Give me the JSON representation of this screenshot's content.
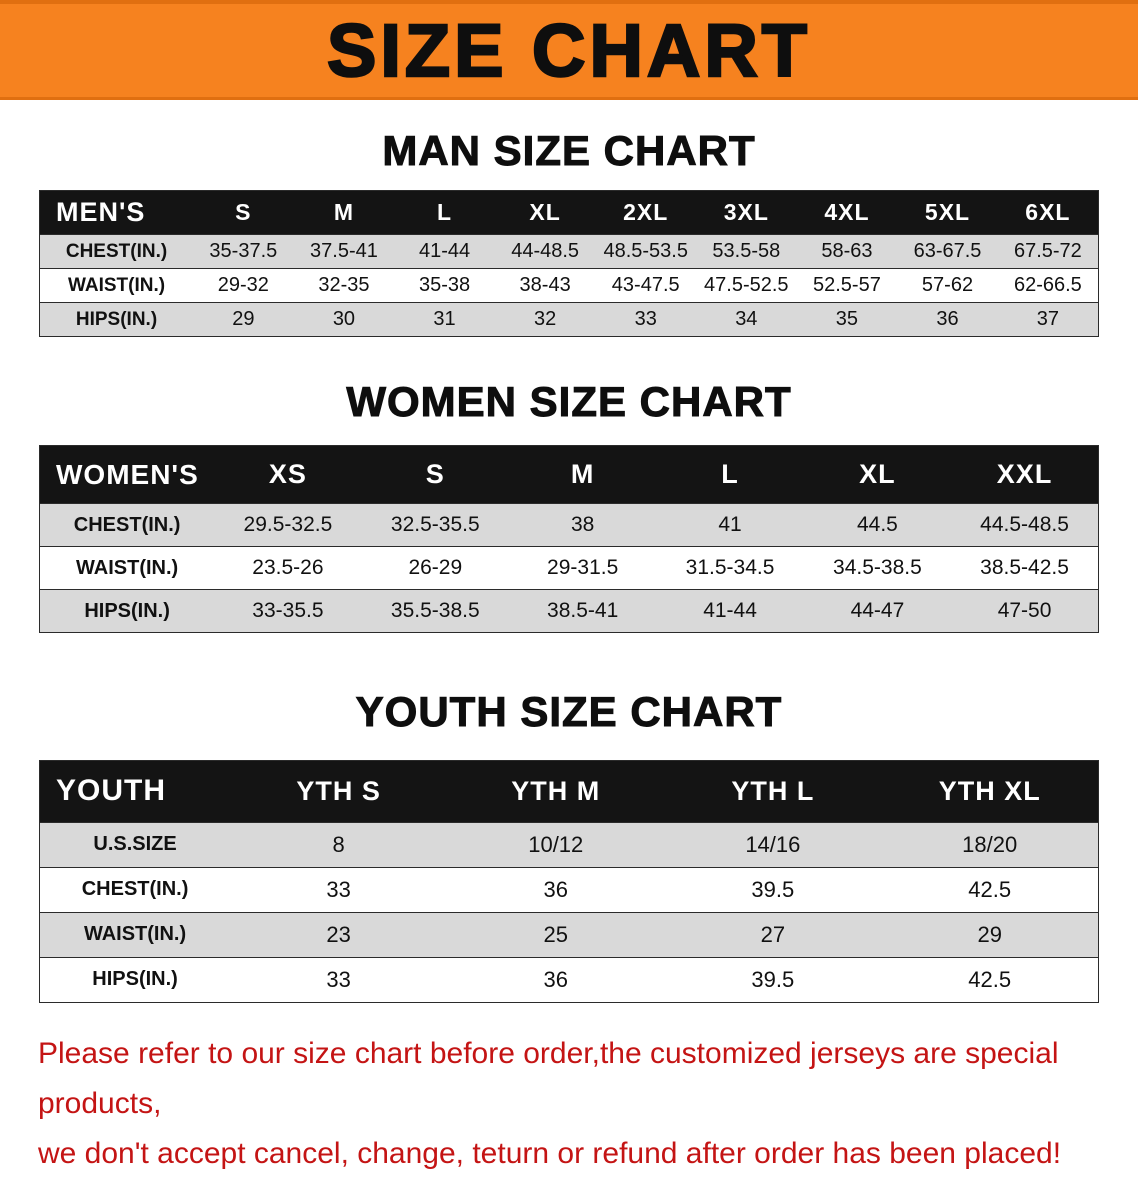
{
  "banner": {
    "title": "SIZE CHART"
  },
  "headings": {
    "men": "MAN SIZE CHART",
    "women": "WOMEN SIZE CHART",
    "youth": "YOUTH SIZE CHART"
  },
  "colors": {
    "banner_bg": "#f6821f",
    "header_row_bg": "#141414",
    "row_alt_bg": "#d9d9d9",
    "footer_text": "#c41414"
  },
  "chart_data": [
    {
      "type": "table",
      "name": "men",
      "title": "MAN SIZE CHART",
      "header": [
        "MEN'S",
        "S",
        "M",
        "L",
        "XL",
        "2XL",
        "3XL",
        "4XL",
        "5XL",
        "6XL"
      ],
      "rows": [
        [
          "CHEST(IN.)",
          "35-37.5",
          "37.5-41",
          "41-44",
          "44-48.5",
          "48.5-53.5",
          "53.5-58",
          "58-63",
          "63-67.5",
          "67.5-72"
        ],
        [
          "WAIST(IN.)",
          "29-32",
          "32-35",
          "35-38",
          "38-43",
          "43-47.5",
          "47.5-52.5",
          "52.5-57",
          "57-62",
          "62-66.5"
        ],
        [
          "HIPS(IN.)",
          "29",
          "30",
          "31",
          "32",
          "33",
          "34",
          "35",
          "36",
          "37"
        ]
      ]
    },
    {
      "type": "table",
      "name": "women",
      "title": "WOMEN SIZE CHART",
      "header": [
        "WOMEN'S",
        "XS",
        "S",
        "M",
        "L",
        "XL",
        "XXL"
      ],
      "rows": [
        [
          "CHEST(IN.)",
          "29.5-32.5",
          "32.5-35.5",
          "38",
          "41",
          "44.5",
          "44.5-48.5"
        ],
        [
          "WAIST(IN.)",
          "23.5-26",
          "26-29",
          "29-31.5",
          "31.5-34.5",
          "34.5-38.5",
          "38.5-42.5"
        ],
        [
          "HIPS(IN.)",
          "33-35.5",
          "35.5-38.5",
          "38.5-41",
          "41-44",
          "44-47",
          "47-50"
        ]
      ]
    },
    {
      "type": "table",
      "name": "youth",
      "title": "YOUTH SIZE CHART",
      "header": [
        "YOUTH",
        "YTH S",
        "YTH M",
        "YTH L",
        "YTH XL"
      ],
      "rows": [
        [
          "U.S.SIZE",
          "8",
          "10/12",
          "14/16",
          "18/20"
        ],
        [
          "CHEST(IN.)",
          "33",
          "36",
          "39.5",
          "42.5"
        ],
        [
          "WAIST(IN.)",
          "23",
          "25",
          "27",
          "29"
        ],
        [
          "HIPS(IN.)",
          "33",
          "36",
          "39.5",
          "42.5"
        ]
      ]
    }
  ],
  "footer": {
    "lines": [
      "Please refer to our size chart before order,the customized jerseys are special products,",
      "we don't accept cancel, change, teturn or refund after order has been placed!"
    ]
  }
}
